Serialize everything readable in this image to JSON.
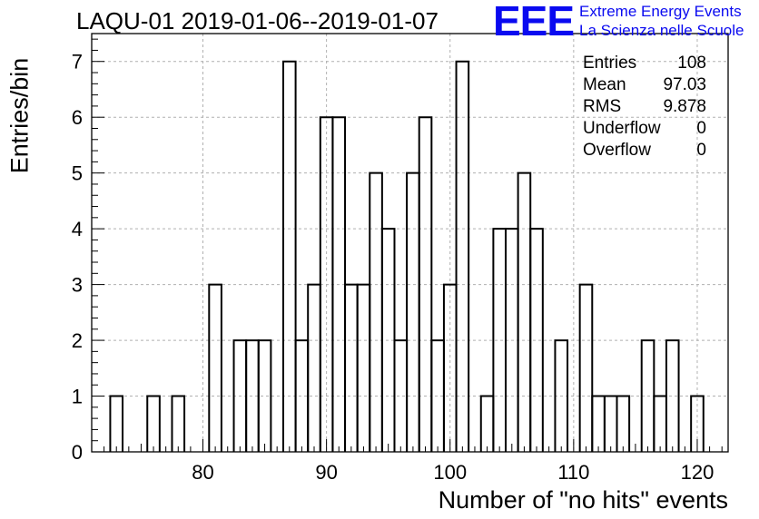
{
  "title": "LAQU-01 2019-01-06--2019-01-07",
  "logo": {
    "mark": "EEE",
    "line1": "Extreme Energy Events",
    "line2": "La Scienza nelle Scuole"
  },
  "stats": [
    {
      "label": "Entries",
      "value": "108"
    },
    {
      "label": "Mean",
      "value": "97.03"
    },
    {
      "label": "RMS",
      "value": "9.878"
    },
    {
      "label": "Underflow",
      "value": "0"
    },
    {
      "label": "Overflow",
      "value": "0"
    }
  ],
  "colors": {
    "line": "#000000",
    "grid": "#b0b0b0",
    "logo": "#0a0af0"
  },
  "chart_data": {
    "type": "bar",
    "title": "LAQU-01 2019-01-06--2019-01-07",
    "xlabel": "Number of \"no hits\" events",
    "ylabel": "Entries/bin",
    "xlim": [
      71,
      122.5
    ],
    "ylim": [
      0,
      7.5
    ],
    "bin_width": 1,
    "grid": true,
    "x_ticks": [
      80,
      90,
      100,
      110,
      120
    ],
    "y_ticks": [
      0,
      1,
      2,
      3,
      4,
      5,
      6,
      7
    ],
    "bins": [
      {
        "x": 73,
        "y": 1
      },
      {
        "x": 76,
        "y": 1
      },
      {
        "x": 78,
        "y": 1
      },
      {
        "x": 81,
        "y": 3
      },
      {
        "x": 83,
        "y": 2
      },
      {
        "x": 84,
        "y": 2
      },
      {
        "x": 85,
        "y": 2
      },
      {
        "x": 87,
        "y": 7
      },
      {
        "x": 88,
        "y": 2
      },
      {
        "x": 89,
        "y": 3
      },
      {
        "x": 90,
        "y": 6
      },
      {
        "x": 91,
        "y": 6
      },
      {
        "x": 92,
        "y": 3
      },
      {
        "x": 93,
        "y": 3
      },
      {
        "x": 94,
        "y": 5
      },
      {
        "x": 95,
        "y": 4
      },
      {
        "x": 96,
        "y": 2
      },
      {
        "x": 97,
        "y": 5
      },
      {
        "x": 98,
        "y": 6
      },
      {
        "x": 99,
        "y": 2
      },
      {
        "x": 100,
        "y": 3
      },
      {
        "x": 101,
        "y": 7
      },
      {
        "x": 103,
        "y": 1
      },
      {
        "x": 104,
        "y": 4
      },
      {
        "x": 105,
        "y": 4
      },
      {
        "x": 106,
        "y": 5
      },
      {
        "x": 107,
        "y": 4
      },
      {
        "x": 109,
        "y": 2
      },
      {
        "x": 111,
        "y": 3
      },
      {
        "x": 112,
        "y": 1
      },
      {
        "x": 113,
        "y": 1
      },
      {
        "x": 114,
        "y": 1
      },
      {
        "x": 116,
        "y": 2
      },
      {
        "x": 117,
        "y": 1
      },
      {
        "x": 118,
        "y": 2
      },
      {
        "x": 120,
        "y": 1
      }
    ]
  }
}
